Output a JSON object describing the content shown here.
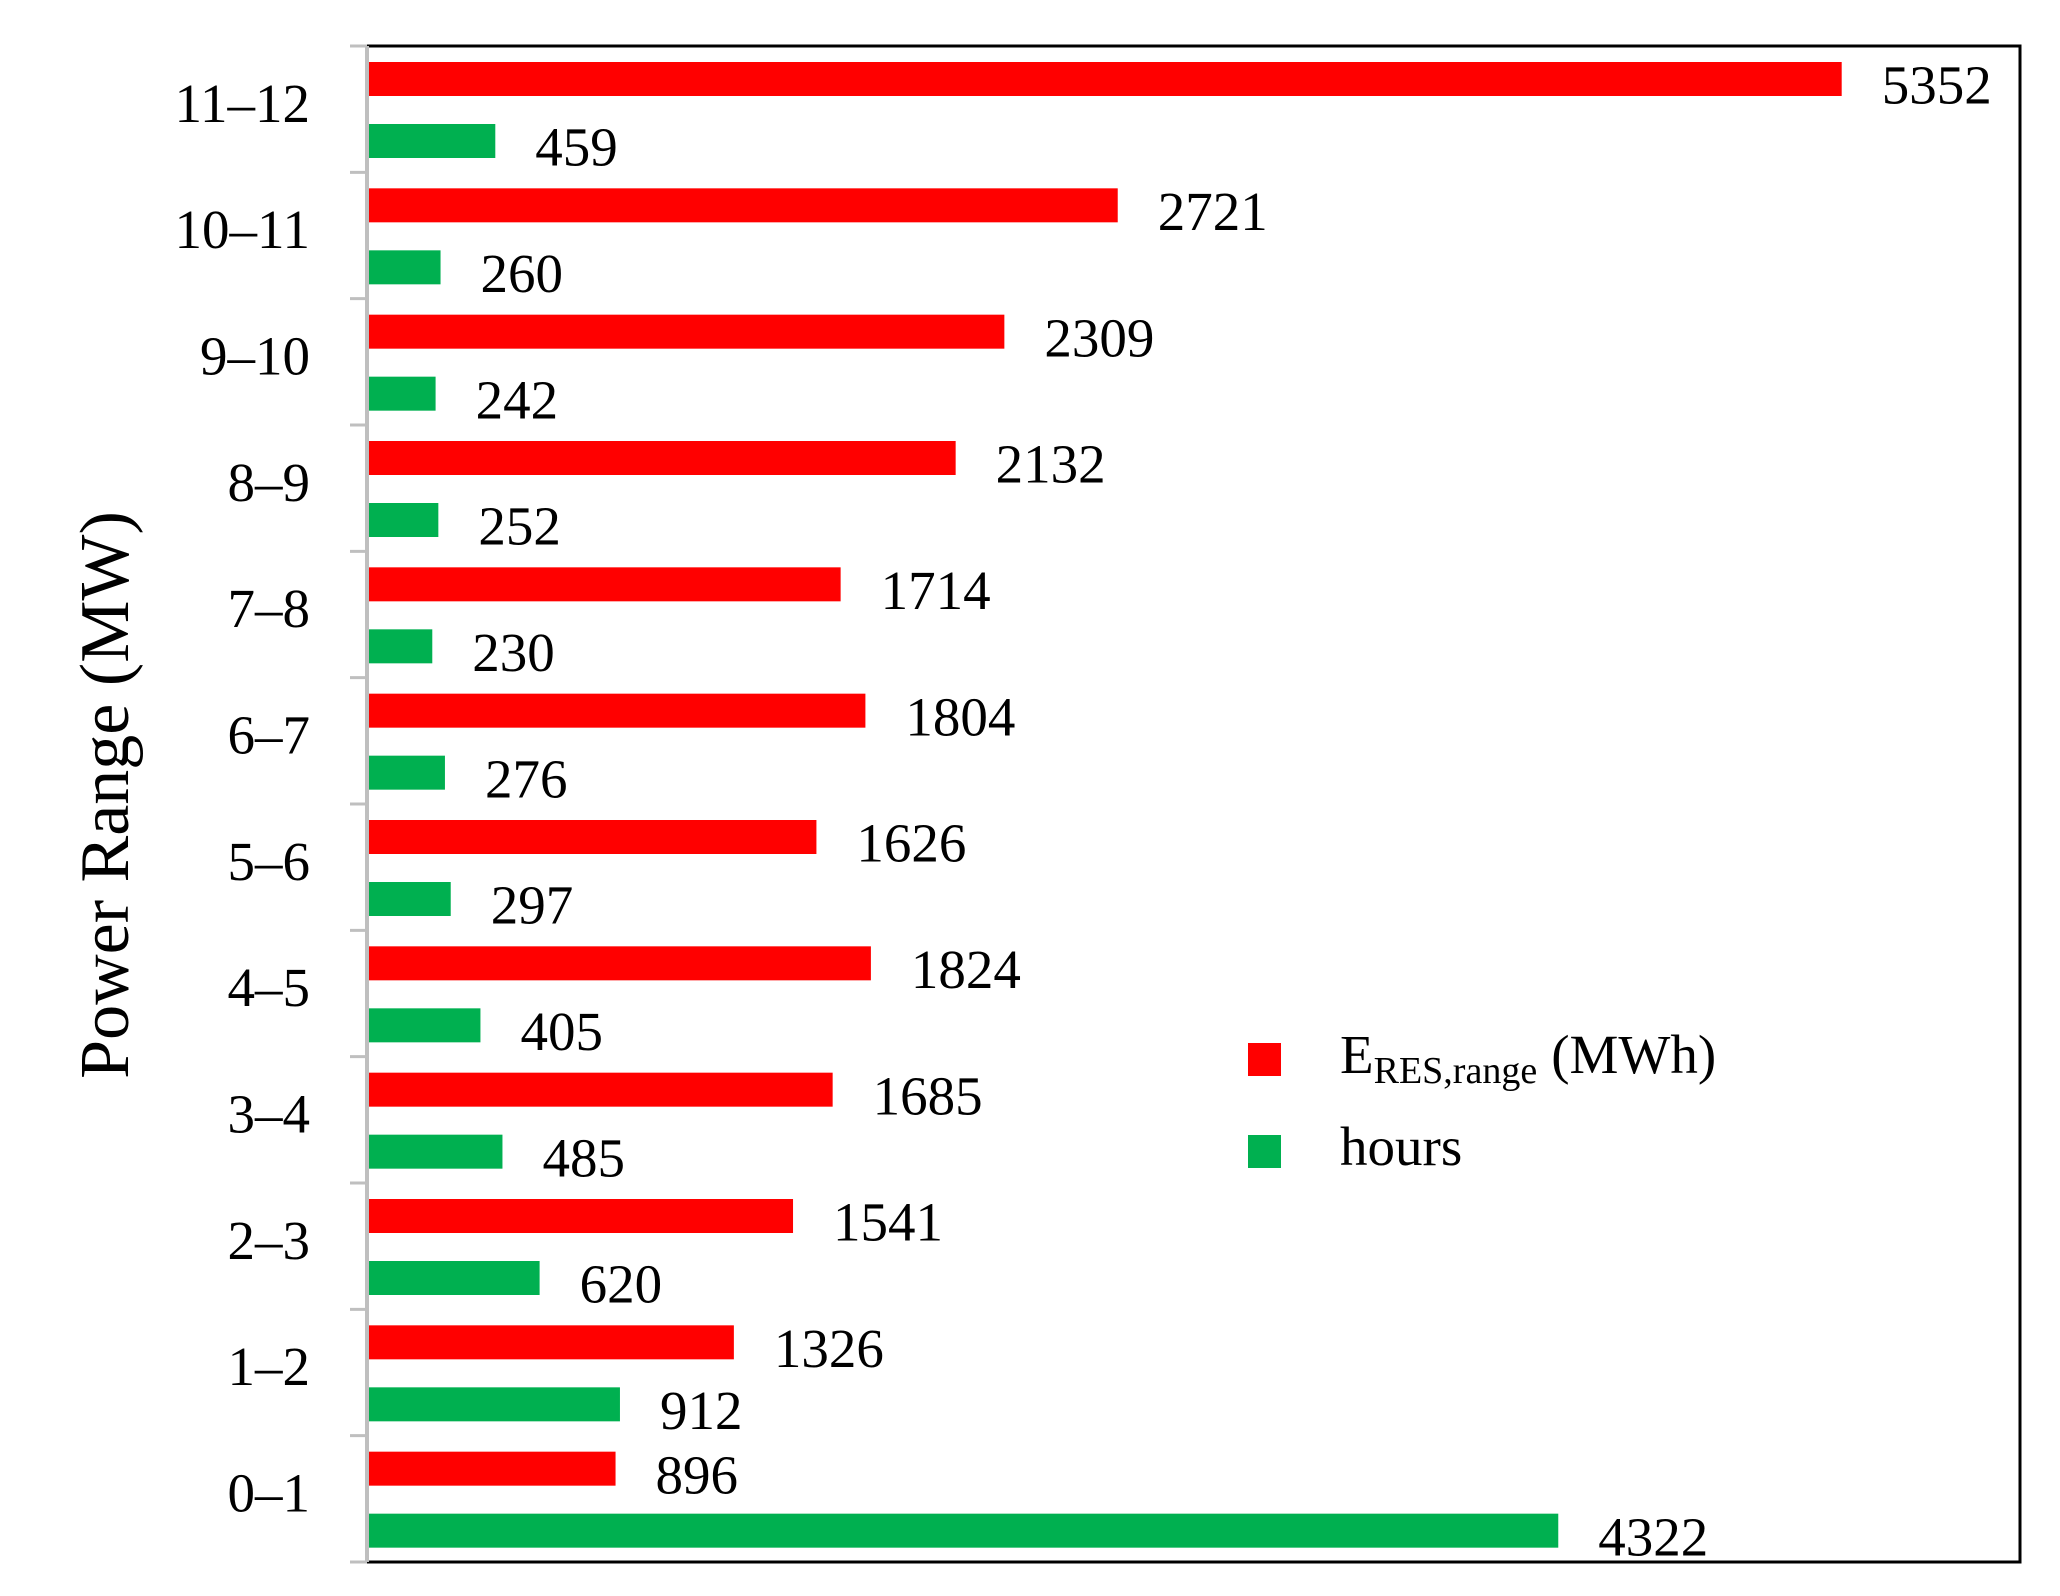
{
  "chart_data": {
    "type": "bar",
    "orientation": "horizontal",
    "y_label": "Power Range (MW)",
    "categories": [
      "11–12",
      "10–11",
      "9–10",
      "8–9",
      "7–8",
      "6–7",
      "5–6",
      "4–5",
      "3–4",
      "2–3",
      "1–2",
      "0–1"
    ],
    "series": [
      {
        "name": [
          "E",
          "RES,range",
          "(MWh)"
        ],
        "color": "#ff0000",
        "values": [
          5352,
          2721,
          2309,
          2132,
          1714,
          1804,
          1626,
          1824,
          1685,
          1541,
          1326,
          896
        ]
      },
      {
        "name": [
          "hours"
        ],
        "color": "#00b050",
        "values": [
          459,
          260,
          242,
          252,
          230,
          276,
          297,
          405,
          485,
          620,
          912,
          4322
        ]
      }
    ],
    "xlim": [
      0,
      6000
    ],
    "legend": "center-right"
  }
}
